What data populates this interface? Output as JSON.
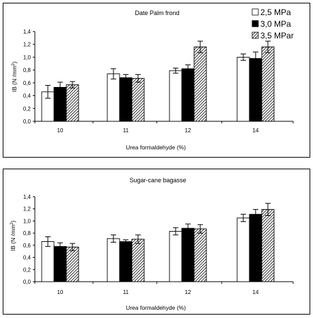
{
  "chart_data": [
    {
      "type": "bar",
      "title": "Date Palm frond",
      "xlabel": "Urea formaldehyde (%)",
      "ylabel": "IB  (N /mm2)",
      "ylabel_main": "IB  (N /mm",
      "ylabel_sup": "2",
      "ylabel_end": ")",
      "ylim": [
        0,
        1.4
      ],
      "yticks": [
        "0,0",
        "0,2",
        "0,4",
        "0,6",
        "0,8",
        "1,0",
        "1,2",
        "1,4"
      ],
      "categories": [
        "10",
        "11",
        "12",
        "14"
      ],
      "grid": false,
      "legend_position": "top-right",
      "series": [
        {
          "name": "2,5 MPa",
          "fill": "#ffffff",
          "values": [
            0.46,
            0.74,
            0.79,
            1.0
          ],
          "errors": [
            0.1,
            0.08,
            0.04,
            0.05
          ]
        },
        {
          "name": "3,0  MPa",
          "fill": "#000000",
          "values": [
            0.53,
            0.68,
            0.82,
            0.98
          ],
          "errors": [
            0.08,
            0.05,
            0.06,
            0.1
          ]
        },
        {
          "name": "3,5 MPar",
          "fill": "hatch",
          "values": [
            0.57,
            0.67,
            1.16,
            1.16
          ],
          "errors": [
            0.05,
            0.06,
            0.09,
            0.09
          ]
        }
      ]
    },
    {
      "type": "bar",
      "title": "Sugar-cane bagasse",
      "xlabel": "Urea formaldehyde (%)",
      "ylabel": "IB  (N /mm2)",
      "ylabel_main": "IB  (N /mm",
      "ylabel_sup": "2",
      "ylabel_end": ")",
      "ylim": [
        0,
        1.4
      ],
      "yticks": [
        "0,0",
        "0,2",
        "0,4",
        "0,6",
        "0,8",
        "1,0",
        "1,2",
        "1,4"
      ],
      "categories": [
        "10",
        "11",
        "12",
        "14"
      ],
      "grid": false,
      "series": [
        {
          "fill": "#ffffff",
          "values": [
            0.66,
            0.71,
            0.83,
            1.05
          ],
          "errors": [
            0.08,
            0.06,
            0.06,
            0.06
          ]
        },
        {
          "fill": "#000000",
          "values": [
            0.58,
            0.66,
            0.88,
            1.11
          ],
          "errors": [
            0.06,
            0.03,
            0.07,
            0.08
          ]
        },
        {
          "fill": "hatch",
          "values": [
            0.57,
            0.7,
            0.87,
            1.19
          ],
          "errors": [
            0.06,
            0.07,
            0.07,
            0.1
          ]
        }
      ]
    }
  ]
}
